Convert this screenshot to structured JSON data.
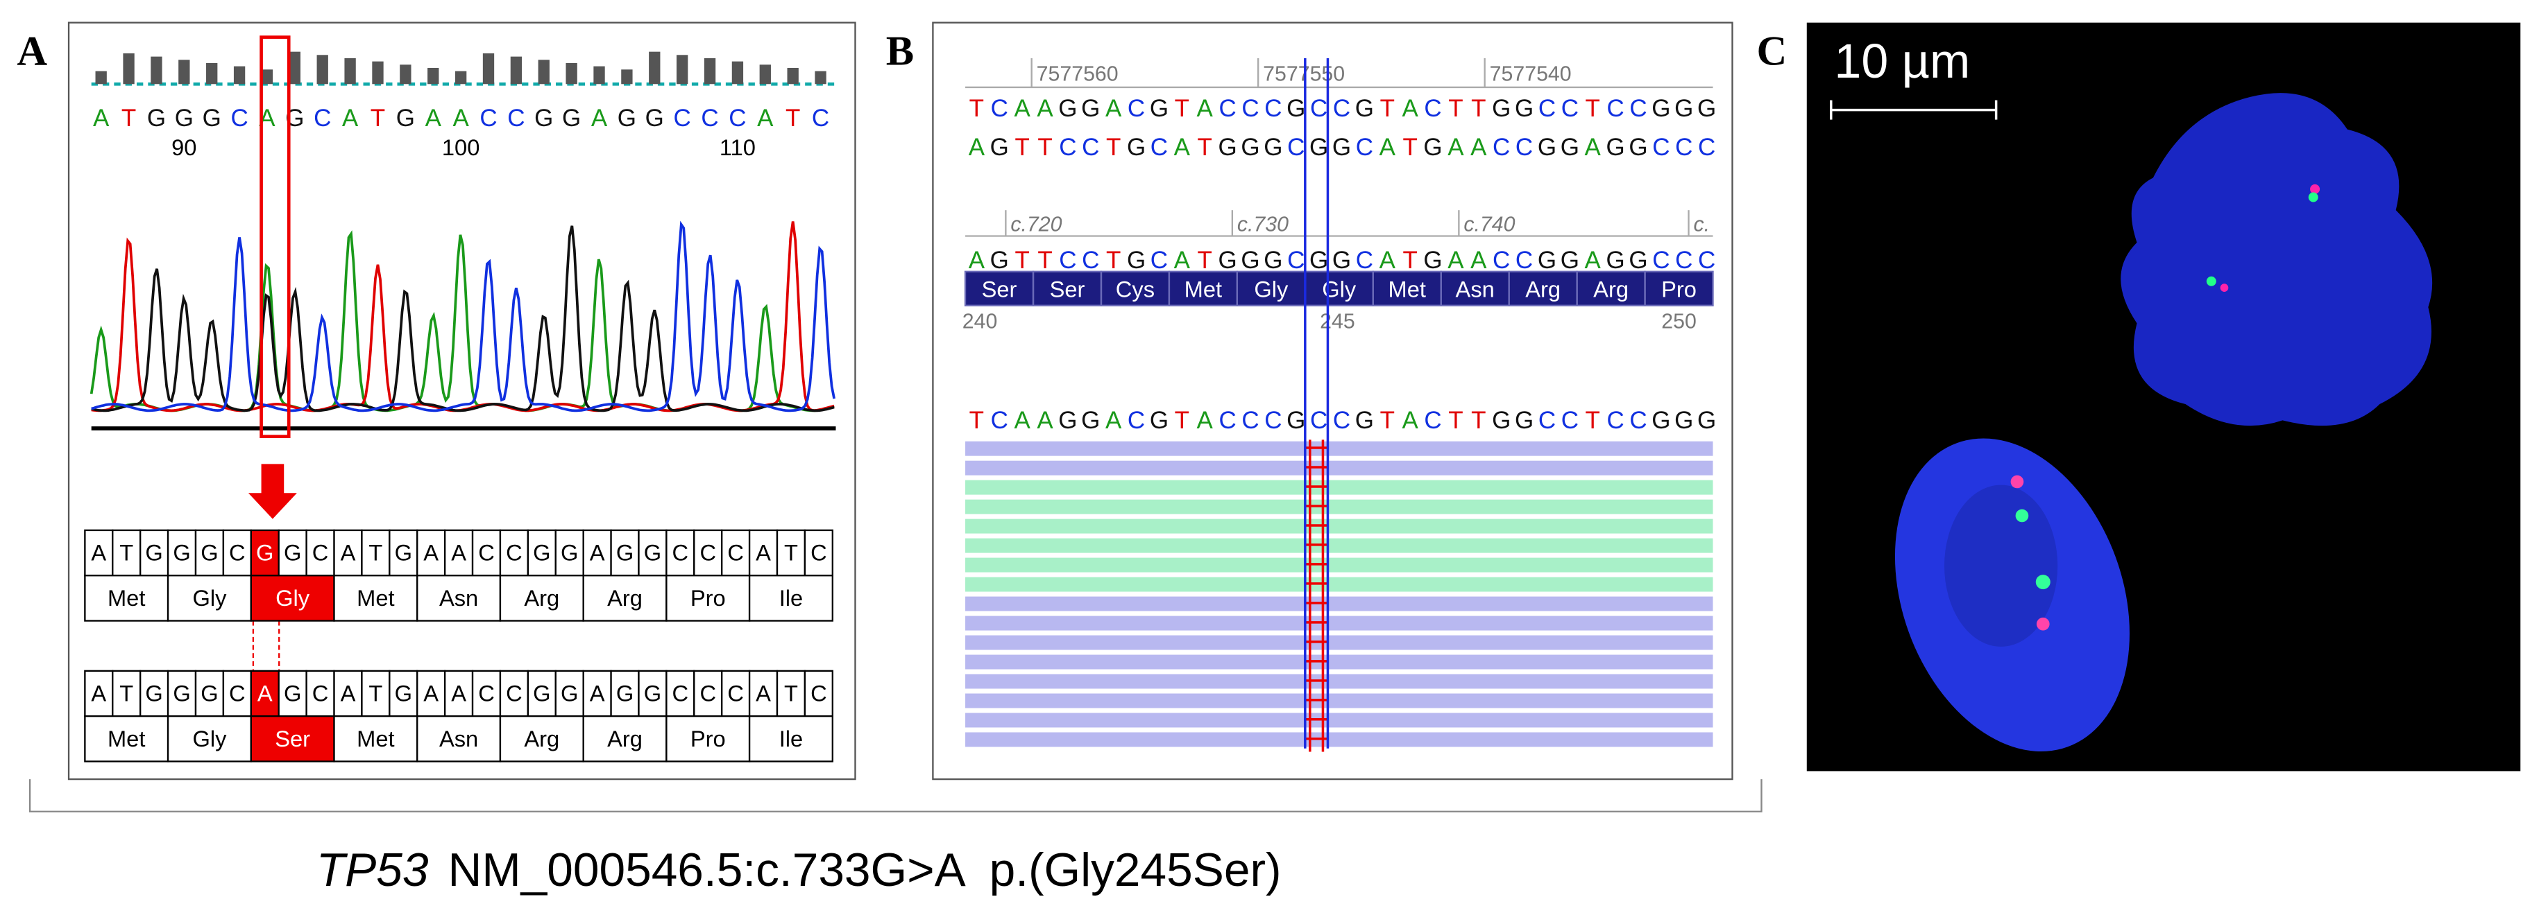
{
  "panel_a": {
    "label": "A",
    "sequence": "ATGGGCAGCATGAACCGGAGGCCCATC",
    "positions": [
      90,
      100,
      110
    ],
    "reference": {
      "bases": [
        "A",
        "T",
        "G",
        "G",
        "G",
        "C",
        "G",
        "G",
        "C",
        "A",
        "T",
        "G",
        "A",
        "A",
        "C",
        "C",
        "G",
        "G",
        "A",
        "G",
        "G",
        "C",
        "C",
        "C",
        "A",
        "T",
        "C"
      ],
      "amino_acids": [
        "Met",
        "Gly",
        "Gly",
        "Met",
        "Asn",
        "Arg",
        "Arg",
        "Pro",
        "Ile"
      ]
    },
    "variant": {
      "bases": [
        "A",
        "T",
        "G",
        "G",
        "G",
        "C",
        "A",
        "G",
        "C",
        "A",
        "T",
        "G",
        "A",
        "A",
        "C",
        "C",
        "G",
        "G",
        "A",
        "G",
        "G",
        "C",
        "C",
        "C",
        "A",
        "T",
        "C"
      ],
      "amino_acids": [
        "Met",
        "Gly",
        "Ser",
        "Met",
        "Asn",
        "Arg",
        "Arg",
        "Pro",
        "Ile"
      ]
    }
  },
  "panel_b": {
    "label": "B",
    "genomic_positions": [
      7577560,
      7577550,
      7577540
    ],
    "genomic_sequence": "TCAAGGACGTACCCGCCGTACTTGGCCTCCGGG",
    "complement_sequence": "AGTTCCTGCATGGGCGGCATGAACCGGAGGCCC",
    "cdna_positions": [
      "c.720",
      "c.730",
      "c.740",
      "c."
    ],
    "coding_sequence": "AGTTCCTGCATGGGCGGCATGAACCGGAGGCCC",
    "amino_acids": [
      "Ser",
      "Ser",
      "Cys",
      "Met",
      "Gly",
      "Gly",
      "Met",
      "Asn",
      "Arg",
      "Arg",
      "Pro"
    ],
    "codon_positions": [
      240,
      245,
      250
    ],
    "read_sequence": "TCAAGGACGTACCCGCCGTACTTGGCCTCCGGG"
  },
  "panel_c": {
    "label": "C",
    "scale_bar": "10 µm"
  },
  "caption": {
    "gene": "TP53",
    "variant": "NM_000546.5:c.733G>A  p.(Gly245Ser)"
  }
}
